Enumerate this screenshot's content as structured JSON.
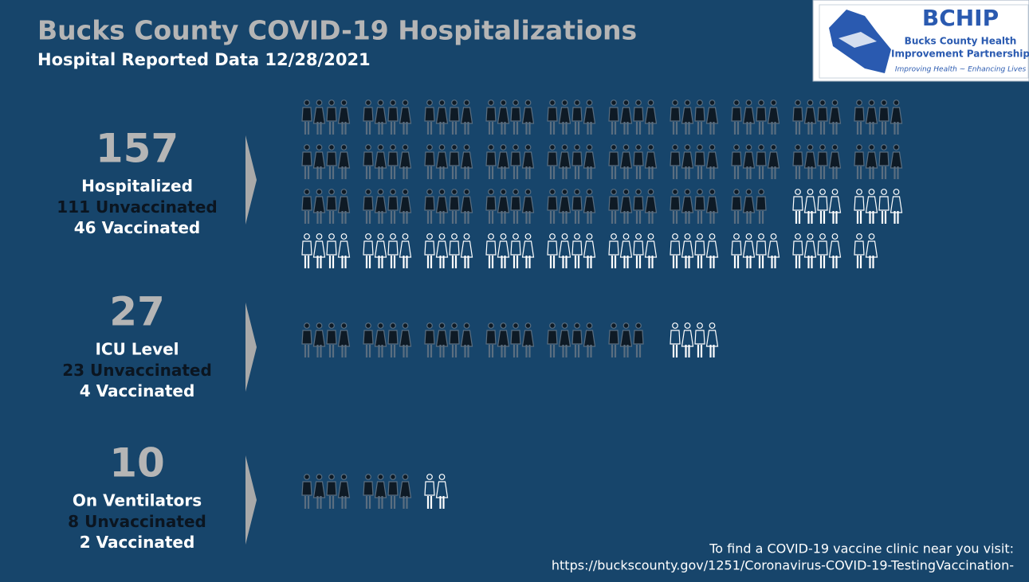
{
  "header": {
    "title": "Bucks County COVID-19 Hospitalizations",
    "subtitle": "Hospital Reported Data 12/28/2021"
  },
  "logo": {
    "name": "BCHIP",
    "line1": "Bucks County Health",
    "line2": "Improvement Partnership",
    "tagline": "Improving Health ~ Enhancing Lives"
  },
  "sections": [
    {
      "total": 157,
      "label": "Hospitalized",
      "unvaccinated": 111,
      "unvaccinated_label": "Unvaccinated",
      "vaccinated": 46,
      "vaccinated_label": "Vaccinated"
    },
    {
      "total": 27,
      "label": "ICU Level",
      "unvaccinated": 23,
      "unvaccinated_label": "Unvaccinated",
      "vaccinated": 4,
      "vaccinated_label": "Vaccinated"
    },
    {
      "total": 10,
      "label": "On Ventilators",
      "unvaccinated": 8,
      "unvaccinated_label": "Unvaccinated",
      "vaccinated": 2,
      "vaccinated_label": "Vaccinated"
    }
  ],
  "footer": {
    "line1": "To find a COVID-19 vaccine clinic near you visit:",
    "line2": "https://buckscounty.gov/1251/Coronavirus-COVID-19-TestingVaccination-"
  }
}
